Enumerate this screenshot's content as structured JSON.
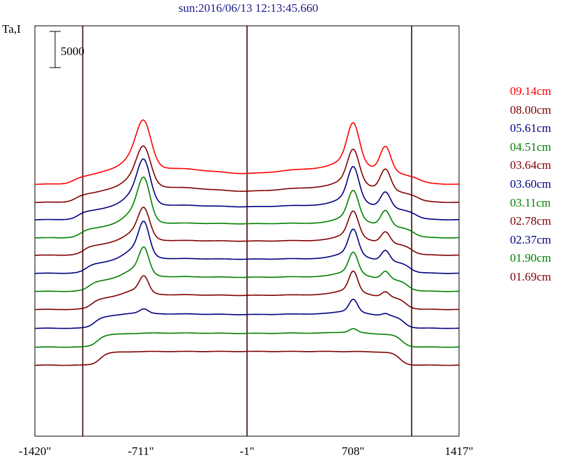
{
  "chart_data": {
    "type": "line",
    "title": "sun:2016/06/13 12:13:45.660",
    "ylabel": "Ta,I",
    "scale_bar": {
      "label": "5000",
      "value": 5000
    },
    "x_ticks": [
      "-1420\"",
      "-711\"",
      "-1\"",
      "708\"",
      "1417\""
    ],
    "x_tick_values": [
      -1420,
      -711,
      -1,
      708,
      1417
    ],
    "xlim": [
      -1420,
      1417
    ],
    "vertical_lines": [
      -1100,
      -1,
      1100
    ],
    "grid": false,
    "legend_position": "right",
    "series": [
      {
        "name": "09.14cm",
        "color": "#ff0000",
        "baseline": -2800,
        "profile": {
          "rise": 700,
          "plateau": 2300,
          "center_dip": 1500,
          "left_peak": 5600,
          "right_peak": 5500,
          "limb_peak": 3300
        }
      },
      {
        "name": "08.00cm",
        "color": "#800000",
        "baseline": -5300,
        "profile": {
          "rise": 850,
          "plateau": 2150,
          "center_dip": 1550,
          "left_peak": 4800,
          "right_peak": 4600,
          "limb_peak": 2800
        }
      },
      {
        "name": "05.61cm",
        "color": "#000080",
        "baseline": -7700,
        "profile": {
          "rise": 1000,
          "plateau": 2050,
          "center_dip": 1800,
          "left_peak": 5400,
          "right_peak": 4700,
          "limb_peak": 2100
        }
      },
      {
        "name": "04.51cm",
        "color": "#008000",
        "baseline": -10200,
        "profile": {
          "rise": 1100,
          "plateau": 2050,
          "center_dip": 1950,
          "left_peak": 5400,
          "right_peak": 4000,
          "limb_peak": 2050
        }
      },
      {
        "name": "03.64cm",
        "color": "#800000",
        "baseline": -12600,
        "profile": {
          "rise": 1200,
          "plateau": 2050,
          "center_dip": 1950,
          "left_peak": 3900,
          "right_peak": 3600,
          "limb_peak": 1500
        }
      },
      {
        "name": "03.60cm",
        "color": "#000080",
        "baseline": -15100,
        "profile": {
          "rise": 1250,
          "plateau": 2050,
          "center_dip": 1950,
          "left_peak": 4400,
          "right_peak": 3600,
          "limb_peak": 1450
        }
      },
      {
        "name": "03.11cm",
        "color": "#008000",
        "baseline": -17600,
        "profile": {
          "rise": 1350,
          "plateau": 2050,
          "center_dip": 1950,
          "left_peak": 3500,
          "right_peak": 3000,
          "limb_peak": 1050
        }
      },
      {
        "name": "02.78cm",
        "color": "#800000",
        "baseline": -20100,
        "profile": {
          "rise": 1450,
          "plateau": 2050,
          "center_dip": 1950,
          "left_peak": 2250,
          "right_peak": 2900,
          "limb_peak": 700
        }
      },
      {
        "name": "02.37cm",
        "color": "#000080",
        "baseline": -22700,
        "profile": {
          "rise": 1550,
          "plateau": 2000,
          "center_dip": 1900,
          "left_peak": 600,
          "right_peak": 1800,
          "limb_peak": 300
        }
      },
      {
        "name": "01.90cm",
        "color": "#008000",
        "baseline": -25300,
        "profile": {
          "rise": 1650,
          "plateau": 1950,
          "center_dip": 1900,
          "left_peak": 0,
          "right_peak": 550,
          "limb_peak": 0
        }
      },
      {
        "name": "01.69cm",
        "color": "#800000",
        "baseline": -27800,
        "profile": {
          "rise": 1750,
          "plateau": 1900,
          "center_dip": 1900,
          "left_peak": 0,
          "right_peak": 0,
          "limb_peak": 0
        }
      }
    ]
  }
}
